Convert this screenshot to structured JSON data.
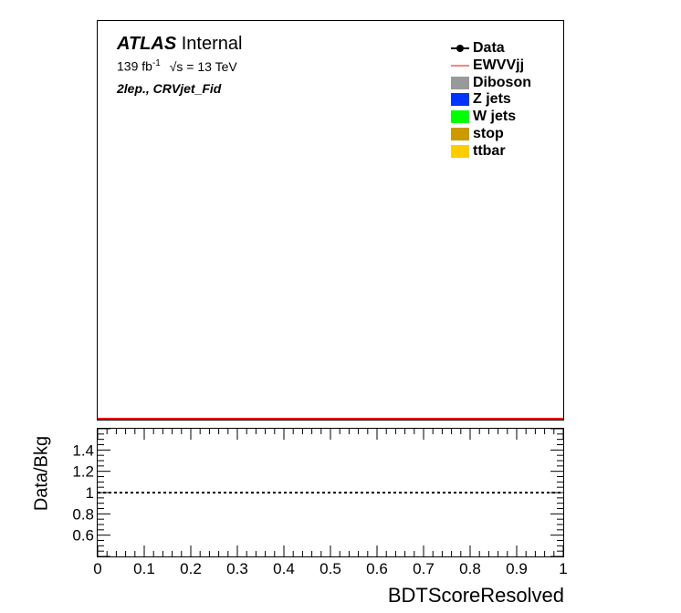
{
  "header": {
    "experiment": "ATLAS",
    "status": "Internal",
    "lumi_value": "139 fb",
    "lumi_exponent": "-1",
    "energy": "√s = 13 TeV",
    "region": "2lep., CRVjet_Fid"
  },
  "legend": [
    {
      "label": "Data",
      "style": "marker",
      "color": "#000000"
    },
    {
      "label": "EWVVjj",
      "style": "line",
      "color": "#ff0000"
    },
    {
      "label": "Diboson",
      "style": "fill",
      "color": "#999999"
    },
    {
      "label": "Z jets",
      "style": "fill",
      "color": "#0033ff"
    },
    {
      "label": "W jets",
      "style": "fill",
      "color": "#00ff00"
    },
    {
      "label": "stop",
      "style": "fill",
      "color": "#cc9900"
    },
    {
      "label": "ttbar",
      "style": "fill",
      "color": "#ffcc00"
    }
  ],
  "chart_data": [
    {
      "panel": "main",
      "type": "line",
      "series": [
        {
          "name": "EWVVjj",
          "color": "#ff0000",
          "x": [
            0,
            1
          ],
          "y": [
            0,
            0
          ]
        }
      ],
      "xlim": [
        0,
        1
      ],
      "grid": false,
      "legend_position": "top-right"
    },
    {
      "panel": "ratio",
      "type": "line",
      "xlabel": "BDTScoreResolved",
      "ylabel": "Data/Bkg",
      "xlim": [
        0,
        1
      ],
      "ylim": [
        0.4,
        1.6
      ],
      "x_ticks": [
        "0",
        "0.1",
        "0.2",
        "0.3",
        "0.4",
        "0.5",
        "0.6",
        "0.7",
        "0.8",
        "0.9",
        "1"
      ],
      "y_ticks": [
        "0.6",
        "0.8",
        "1",
        "1.2",
        "1.4"
      ],
      "reference_line": {
        "y": 1,
        "style": "dashed",
        "color": "#000000"
      },
      "grid": false
    }
  ]
}
